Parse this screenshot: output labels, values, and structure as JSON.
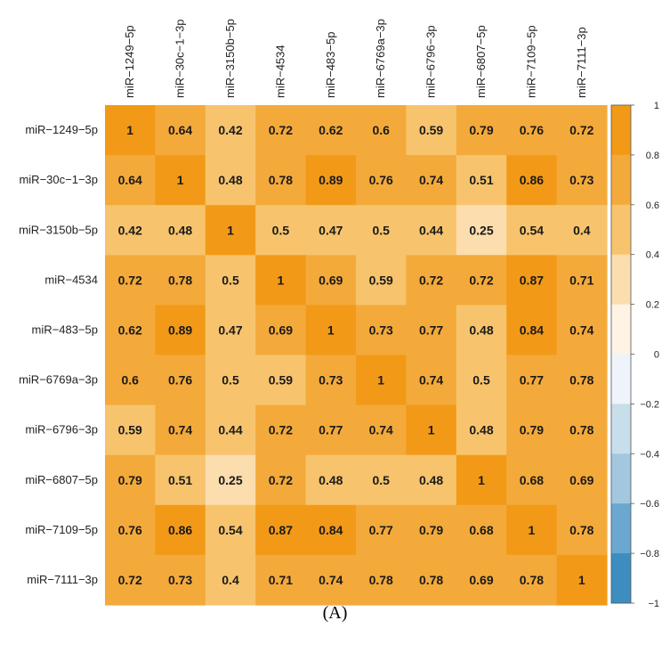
{
  "caption": "(A)",
  "chart_data": {
    "type": "heatmap",
    "row_labels": [
      "miR−1249−5p",
      "miR−30c−1−3p",
      "miR−3150b−5p",
      "miR−4534",
      "miR−483−5p",
      "miR−6769a−3p",
      "miR−6796−3p",
      "miR−6807−5p",
      "miR−7109−5p",
      "miR−7111−3p"
    ],
    "col_labels": [
      "miR−1249−5p",
      "miR−30c−1−3p",
      "miR−3150b−5p",
      "miR−4534",
      "miR−483−5p",
      "miR−6769a−3p",
      "miR−6796−3p",
      "miR−6807−5p",
      "miR−7109−5p",
      "miR−7111−3p"
    ],
    "values": [
      [
        1,
        0.64,
        0.42,
        0.72,
        0.62,
        0.6,
        0.59,
        0.79,
        0.76,
        0.72
      ],
      [
        0.64,
        1,
        0.48,
        0.78,
        0.89,
        0.76,
        0.74,
        0.51,
        0.86,
        0.73
      ],
      [
        0.42,
        0.48,
        1,
        0.5,
        0.47,
        0.5,
        0.44,
        0.25,
        0.54,
        0.4
      ],
      [
        0.72,
        0.78,
        0.5,
        1,
        0.69,
        0.59,
        0.72,
        0.72,
        0.87,
        0.71
      ],
      [
        0.62,
        0.89,
        0.47,
        0.69,
        1,
        0.73,
        0.77,
        0.48,
        0.84,
        0.74
      ],
      [
        0.6,
        0.76,
        0.5,
        0.59,
        0.73,
        1,
        0.74,
        0.5,
        0.77,
        0.78
      ],
      [
        0.59,
        0.74,
        0.44,
        0.72,
        0.77,
        0.74,
        1,
        0.48,
        0.79,
        0.78
      ],
      [
        0.79,
        0.51,
        0.25,
        0.72,
        0.48,
        0.5,
        0.48,
        1,
        0.68,
        0.69
      ],
      [
        0.76,
        0.86,
        0.54,
        0.87,
        0.84,
        0.77,
        0.79,
        0.68,
        1,
        0.78
      ],
      [
        0.72,
        0.73,
        0.4,
        0.71,
        0.74,
        0.78,
        0.78,
        0.69,
        0.78,
        1
      ]
    ],
    "value_labels": [
      [
        "1",
        "0.64",
        "0.42",
        "0.72",
        "0.62",
        "0.6",
        "0.59",
        "0.79",
        "0.76",
        "0.72"
      ],
      [
        "0.64",
        "1",
        "0.48",
        "0.78",
        "0.89",
        "0.76",
        "0.74",
        "0.51",
        "0.86",
        "0.73"
      ],
      [
        "0.42",
        "0.48",
        "1",
        "0.5",
        "0.47",
        "0.5",
        "0.44",
        "0.25",
        "0.54",
        "0.4"
      ],
      [
        "0.72",
        "0.78",
        "0.5",
        "1",
        "0.69",
        "0.59",
        "0.72",
        "0.72",
        "0.87",
        "0.71"
      ],
      [
        "0.62",
        "0.89",
        "0.47",
        "0.69",
        "1",
        "0.73",
        "0.77",
        "0.48",
        "0.84",
        "0.74"
      ],
      [
        "0.6",
        "0.76",
        "0.5",
        "0.59",
        "0.73",
        "1",
        "0.74",
        "0.5",
        "0.77",
        "0.78"
      ],
      [
        "0.59",
        "0.74",
        "0.44",
        "0.72",
        "0.77",
        "0.74",
        "1",
        "0.48",
        "0.79",
        "0.78"
      ],
      [
        "0.79",
        "0.51",
        "0.25",
        "0.72",
        "0.48",
        "0.5",
        "0.48",
        "1",
        "0.68",
        "0.69"
      ],
      [
        "0.76",
        "0.86",
        "0.54",
        "0.87",
        "0.84",
        "0.77",
        "0.79",
        "0.68",
        "1",
        "0.78"
      ],
      [
        "0.72",
        "0.73",
        "0.4",
        "0.71",
        "0.74",
        "0.78",
        "0.78",
        "0.69",
        "0.78",
        "1"
      ]
    ],
    "scale": {
      "range": [
        -1,
        1
      ],
      "ticks": [
        1,
        0.8,
        0.6,
        0.4,
        0.2,
        0,
        -0.2,
        -0.4,
        -0.6,
        -0.8,
        -1
      ],
      "tick_labels": [
        "1",
        "0.8",
        "0.6",
        "0.4",
        "0.2",
        "0",
        "−0.2",
        "−0.4",
        "−0.6",
        "−0.8",
        "−1"
      ],
      "bins": [
        {
          "from": 0.8,
          "to": 1.0,
          "color": "#F29A18"
        },
        {
          "from": 0.6,
          "to": 0.8,
          "color": "#F4AA3A"
        },
        {
          "from": 0.4,
          "to": 0.6,
          "color": "#F7C46D"
        },
        {
          "from": 0.2,
          "to": 0.4,
          "color": "#FBDDAE"
        },
        {
          "from": 0.0,
          "to": 0.2,
          "color": "#FEF3E4"
        },
        {
          "from": -0.2,
          "to": 0.0,
          "color": "#EEF4F9"
        },
        {
          "from": -0.4,
          "to": -0.2,
          "color": "#C8DEEB"
        },
        {
          "from": -0.6,
          "to": -0.4,
          "color": "#A3C7DE"
        },
        {
          "from": -0.8,
          "to": -0.6,
          "color": "#6AA8CF"
        },
        {
          "from": -1.0,
          "to": -0.8,
          "color": "#3E8DC1"
        }
      ],
      "legend_position": "right"
    }
  }
}
